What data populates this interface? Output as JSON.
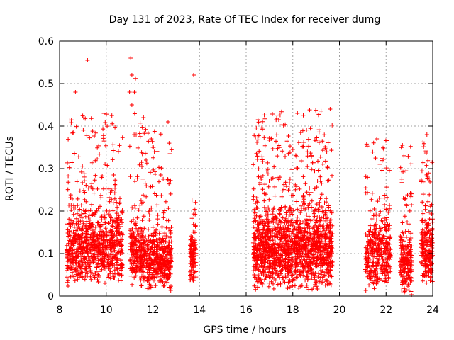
{
  "chart_data": {
    "type": "scatter",
    "title": "Day 131 of 2023, Rate Of TEC Index for receiver dumg",
    "xlabel": "GPS time / hours",
    "ylabel": "ROTI / TECUs",
    "xlim": [
      8,
      24
    ],
    "ylim": [
      0,
      0.6
    ],
    "x_ticks": [
      "8",
      "10",
      "12",
      "14",
      "16",
      "18",
      "20",
      "22",
      "24"
    ],
    "y_ticks": [
      "0",
      "0.1",
      "0.2",
      "0.3",
      "0.4",
      "0.5",
      "0.6"
    ],
    "grid": true,
    "marker": "+",
    "color": "#ff0000",
    "series": [
      {
        "name": "ROTI",
        "clusters": [
          {
            "x_start": 8.3,
            "x_end": 10.7,
            "y_typical": [
              0.02,
              0.2
            ],
            "y_peak": 0.43,
            "density": 900
          },
          {
            "x_start": 11.0,
            "x_end": 11.3,
            "y_typical": [
              0.02,
              0.18
            ],
            "y_peak": 0.52,
            "density": 120
          },
          {
            "x_start": 11.3,
            "x_end": 12.8,
            "y_typical": [
              0.01,
              0.16
            ],
            "y_peak": 0.42,
            "density": 600
          },
          {
            "x_start": 13.6,
            "x_end": 13.85,
            "y_typical": [
              0.02,
              0.15
            ],
            "y_peak": 0.23,
            "density": 120
          },
          {
            "x_start": 16.3,
            "x_end": 19.7,
            "y_typical": [
              0.01,
              0.2
            ],
            "y_peak": 0.44,
            "density": 1600
          },
          {
            "x_start": 21.1,
            "x_end": 22.2,
            "y_typical": [
              0.01,
              0.19
            ],
            "y_peak": 0.37,
            "density": 380
          },
          {
            "x_start": 22.6,
            "x_end": 23.1,
            "y_typical": [
              0.0,
              0.15
            ],
            "y_peak": 0.36,
            "density": 220
          },
          {
            "x_start": 23.5,
            "x_end": 24.0,
            "y_typical": [
              0.02,
              0.18
            ],
            "y_peak": 0.38,
            "density": 230
          }
        ],
        "outliers": [
          {
            "x": 8.68,
            "y": 0.48
          },
          {
            "x": 9.2,
            "y": 0.555
          },
          {
            "x": 11.05,
            "y": 0.56
          },
          {
            "x": 11.1,
            "y": 0.52
          },
          {
            "x": 11.0,
            "y": 0.48
          },
          {
            "x": 11.1,
            "y": 0.45
          },
          {
            "x": 13.75,
            "y": 0.52
          },
          {
            "x": 11.6,
            "y": 0.42
          },
          {
            "x": 18.2,
            "y": 0.43
          },
          {
            "x": 19.6,
            "y": 0.44
          },
          {
            "x": 9.9,
            "y": 0.43
          },
          {
            "x": 23.75,
            "y": 0.38
          },
          {
            "x": 22.7,
            "y": 0.355
          },
          {
            "x": 21.6,
            "y": 0.37
          }
        ]
      }
    ]
  }
}
